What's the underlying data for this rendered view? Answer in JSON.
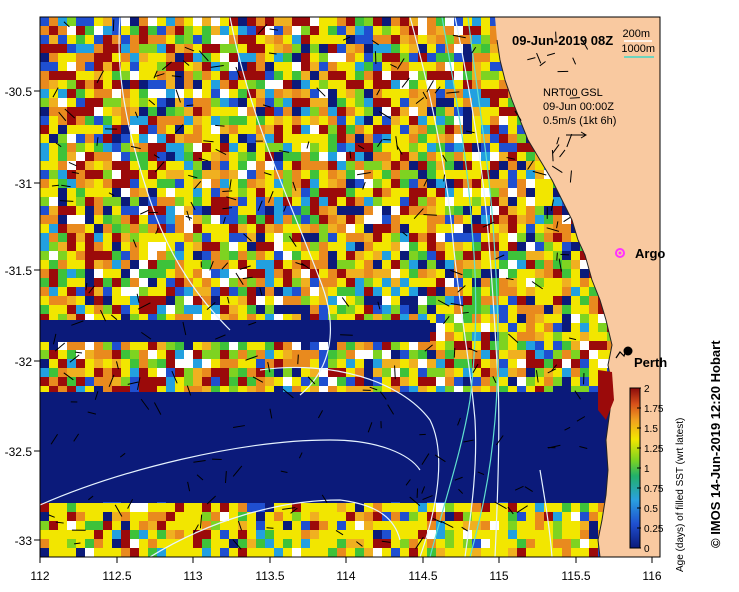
{
  "map": {
    "date_title": "09-Jun-2019 08Z",
    "legend_depth": {
      "d200": "200m",
      "d1000": "1000m"
    },
    "current_info": {
      "line1": "NRT00 GSL",
      "line2": "09-Jun 00:00Z",
      "line3": "0.5m/s (1kt 6h)"
    },
    "labels": {
      "argo": "Argo",
      "perth": "Perth"
    },
    "lon_ticks": [
      "112",
      "112.5",
      "113",
      "113.5",
      "114",
      "114.5",
      "115",
      "115.5",
      "116"
    ],
    "lat_ticks": [
      "-30.5",
      "-31",
      "-31.5",
      "-32",
      "-32.5",
      "-33"
    ]
  },
  "colorbar": {
    "title": "Age (days) of filled SST (wrt latest)",
    "ticks": [
      "2",
      "1.75",
      "1.5",
      "1.25",
      "1",
      "0.75",
      "0.5",
      "0.25",
      "0"
    ]
  },
  "credit": "© IMOS 14-Jun-2019 12:20 Hobart",
  "colors": {
    "land": "#f9c9a0",
    "deep_blue": "#0b1a7a",
    "dark_red": "#9b0a0a",
    "yellow": "#f2e600",
    "orange": "#e98a1e",
    "green": "#3ec23a"
  }
}
